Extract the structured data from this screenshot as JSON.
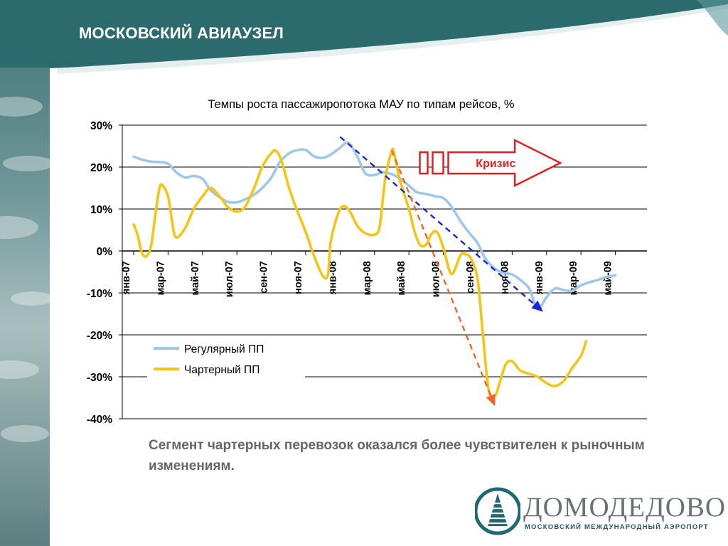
{
  "slide": {
    "title": "МОСКОВСКИЙ АВИАУЗЕЛ",
    "caption": "Сегмент чартерных перевозок оказался более чувствителен к рыночным изменениям."
  },
  "logo": {
    "wordmark": "ДОМОДЕДОВО",
    "tagline": "МОСКОВСКИЙ МЕЖДУНАРОДНЫЙ АЭРОПОРТ"
  },
  "colors": {
    "header_dark": "#2c6b6d",
    "header_mid": "#3f8688",
    "regular": "#9dc8ea",
    "charter": "#f5c514",
    "trend_regular": "#1a25d6",
    "trend_charter": "#ef6528",
    "crisis": "#e02024"
  },
  "chart_data": {
    "type": "line",
    "title": "Темпы роста пассажиропотока МАУ по типам рейсов, %",
    "ylim": [
      -40,
      30
    ],
    "yticks": [
      30,
      20,
      10,
      0,
      -10,
      -20,
      -30,
      -40
    ],
    "ytick_labels": [
      "30%",
      "20%",
      "10%",
      "0%",
      "-10%",
      "-20%",
      "-30%",
      "-40%"
    ],
    "grid": true,
    "x_range": [
      "2007-01",
      "2009-06"
    ],
    "x_tick_positions": [
      "2007-01",
      "2007-03",
      "2007-05",
      "2007-07",
      "2007-09",
      "2007-11",
      "2008-01",
      "2008-03",
      "2008-05",
      "2008-07",
      "2008-09",
      "2008-11",
      "2009-01",
      "2009-03",
      "2009-05"
    ],
    "x_tick_labels": [
      "янв-07",
      "мар-07",
      "май-07",
      "июл-07",
      "сен-07",
      "ноя-07",
      "янв-08",
      "мар-08",
      "май-08",
      "июл-08",
      "сен-08",
      "ноя-08",
      "янв-09",
      "мар-09",
      "май-09"
    ],
    "legend_position": "lower-left",
    "series": [
      {
        "name": "Регулярный ПП",
        "color": "#9dc8ea",
        "points": [
          [
            "2007-01-01",
            22.5
          ],
          [
            "2007-01-15",
            21.8
          ],
          [
            "2007-02-01",
            21.3
          ],
          [
            "2007-02-15",
            21.2
          ],
          [
            "2007-03-01",
            20.8
          ],
          [
            "2007-03-15",
            18.8
          ],
          [
            "2007-04-01",
            17.5
          ],
          [
            "2007-04-15",
            17.9
          ],
          [
            "2007-05-01",
            17.2
          ],
          [
            "2007-05-15",
            14.5
          ],
          [
            "2007-06-01",
            12.8
          ],
          [
            "2007-06-15",
            11.7
          ],
          [
            "2007-07-01",
            11.6
          ],
          [
            "2007-07-15",
            12.3
          ],
          [
            "2007-08-01",
            13.4
          ],
          [
            "2007-08-15",
            15.0
          ],
          [
            "2007-09-01",
            17.5
          ],
          [
            "2007-09-15",
            21.0
          ],
          [
            "2007-10-01",
            23.2
          ],
          [
            "2007-10-15",
            24.0
          ],
          [
            "2007-11-01",
            24.1
          ],
          [
            "2007-11-15",
            22.6
          ],
          [
            "2007-12-01",
            22.2
          ],
          [
            "2007-12-15",
            23.0
          ],
          [
            "2008-01-01",
            24.6
          ],
          [
            "2008-01-15",
            25.8
          ],
          [
            "2008-02-01",
            22.5
          ],
          [
            "2008-02-15",
            18.5
          ],
          [
            "2008-03-01",
            18.1
          ],
          [
            "2008-03-15",
            18.8
          ],
          [
            "2008-04-01",
            18.3
          ],
          [
            "2008-04-15",
            17.3
          ],
          [
            "2008-05-01",
            15.6
          ],
          [
            "2008-05-15",
            14.0
          ],
          [
            "2008-06-01",
            13.6
          ],
          [
            "2008-06-15",
            13.1
          ],
          [
            "2008-07-01",
            12.6
          ],
          [
            "2008-07-15",
            10.6
          ],
          [
            "2008-08-01",
            7.1
          ],
          [
            "2008-08-15",
            4.5
          ],
          [
            "2008-09-01",
            1.8
          ],
          [
            "2008-09-15",
            -2.0
          ],
          [
            "2008-10-01",
            -4.2
          ],
          [
            "2008-10-15",
            -5.2
          ],
          [
            "2008-11-01",
            -5.6
          ],
          [
            "2008-11-15",
            -6.9
          ],
          [
            "2008-12-01",
            -9.0
          ],
          [
            "2008-12-15",
            -13.8
          ],
          [
            "2009-01-01",
            -11.0
          ],
          [
            "2009-01-15",
            -9.0
          ],
          [
            "2009-02-01",
            -9.3
          ],
          [
            "2009-02-15",
            -9.5
          ],
          [
            "2009-03-01",
            -8.2
          ],
          [
            "2009-03-15",
            -7.5
          ],
          [
            "2009-04-01",
            -6.9
          ],
          [
            "2009-04-15",
            -6.2
          ],
          [
            "2009-05-01",
            -5.8
          ]
        ]
      },
      {
        "name": "Чартерный ПП",
        "color": "#f5c514",
        "points": [
          [
            "2007-01-01",
            6.3
          ],
          [
            "2007-01-08",
            3.8
          ],
          [
            "2007-01-15",
            -0.3
          ],
          [
            "2007-01-23",
            -1.3
          ],
          [
            "2007-02-01",
            1.0
          ],
          [
            "2007-02-08",
            7.7
          ],
          [
            "2007-02-15",
            14.3
          ],
          [
            "2007-02-20",
            15.8
          ],
          [
            "2007-03-01",
            13.0
          ],
          [
            "2007-03-08",
            7.0
          ],
          [
            "2007-03-15",
            3.2
          ],
          [
            "2007-04-01",
            5.5
          ],
          [
            "2007-04-15",
            9.8
          ],
          [
            "2007-05-01",
            13.0
          ],
          [
            "2007-05-15",
            15.0
          ],
          [
            "2007-06-01",
            13.0
          ],
          [
            "2007-06-15",
            10.5
          ],
          [
            "2007-07-01",
            9.4
          ],
          [
            "2007-07-15",
            10.5
          ],
          [
            "2007-08-01",
            15.0
          ],
          [
            "2007-08-15",
            20.0
          ],
          [
            "2007-09-01",
            23.3
          ],
          [
            "2007-09-10",
            23.8
          ],
          [
            "2007-09-20",
            21.0
          ],
          [
            "2007-10-01",
            15.5
          ],
          [
            "2007-10-15",
            10.0
          ],
          [
            "2007-11-01",
            4.5
          ],
          [
            "2007-11-15",
            -1.0
          ],
          [
            "2007-12-01",
            -6.0
          ],
          [
            "2007-12-10",
            -5.5
          ],
          [
            "2007-12-15",
            2.5
          ],
          [
            "2008-01-01",
            10.0
          ],
          [
            "2008-01-15",
            10.0
          ],
          [
            "2008-02-01",
            6.0
          ],
          [
            "2008-02-15",
            4.2
          ],
          [
            "2008-03-01",
            3.9
          ],
          [
            "2008-03-10",
            6.0
          ],
          [
            "2008-03-20",
            17.5
          ],
          [
            "2008-04-01",
            23.8
          ],
          [
            "2008-04-05",
            23.3
          ],
          [
            "2008-04-15",
            17.0
          ],
          [
            "2008-05-01",
            10.0
          ],
          [
            "2008-05-10",
            5.0
          ],
          [
            "2008-05-20",
            1.5
          ],
          [
            "2008-06-01",
            1.5
          ],
          [
            "2008-06-10",
            4.0
          ],
          [
            "2008-06-20",
            4.5
          ],
          [
            "2008-07-01",
            0.8
          ],
          [
            "2008-07-15",
            -5.5
          ],
          [
            "2008-08-01",
            -1.0
          ],
          [
            "2008-08-10",
            -0.8
          ],
          [
            "2008-08-20",
            -2.0
          ],
          [
            "2008-09-01",
            -7.0
          ],
          [
            "2008-09-10",
            -20.0
          ],
          [
            "2008-09-20",
            -33.0
          ],
          [
            "2008-10-01",
            -34.5
          ],
          [
            "2008-10-10",
            -31.0
          ],
          [
            "2008-10-20",
            -27.0
          ],
          [
            "2008-11-01",
            -26.3
          ],
          [
            "2008-11-15",
            -28.5
          ],
          [
            "2008-12-01",
            -29.3
          ],
          [
            "2008-12-15",
            -30.0
          ],
          [
            "2009-01-01",
            -31.5
          ],
          [
            "2009-01-15",
            -32.2
          ],
          [
            "2009-02-01",
            -31.0
          ],
          [
            "2009-02-15",
            -28.0
          ],
          [
            "2009-03-01",
            -25.0
          ],
          [
            "2009-03-10",
            -21.5
          ]
        ]
      }
    ],
    "annotations": [
      {
        "type": "dashed-arrow",
        "color": "#1a25d6",
        "from": [
          "2008-01-01",
          27.2
        ],
        "to": [
          "2008-12-25",
          -14.5
        ]
      },
      {
        "type": "dashed-arrow",
        "color": "#ef6528",
        "from": [
          "2008-04-01",
          24.0
        ],
        "to": [
          "2008-10-01",
          -37.0
        ]
      },
      {
        "type": "crisis-arrow",
        "label": "Кризис",
        "color": "#e02024",
        "from": [
          "2008-05-20",
          21.0
        ],
        "to": [
          "2009-01-25",
          21.0
        ]
      }
    ]
  }
}
